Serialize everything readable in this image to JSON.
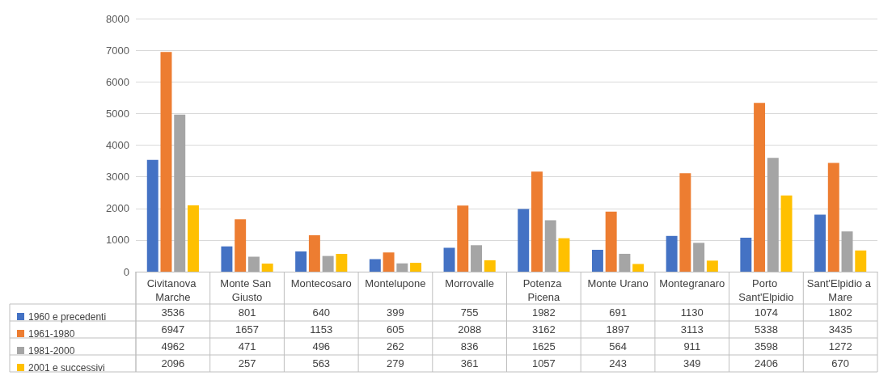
{
  "chart_data": {
    "type": "bar",
    "categories": [
      "Civitanova Marche",
      "Monte San Giusto",
      "Montecosaro",
      "Montelupone",
      "Morrovalle",
      "Potenza Picena",
      "Monte Urano",
      "Montegranaro",
      "Porto Sant'Elpidio",
      "Sant'Elpidio a Mare"
    ],
    "series": [
      {
        "name": "1960 e precedenti",
        "color": "#4472c4",
        "values": [
          3536,
          801,
          640,
          399,
          755,
          1982,
          691,
          1130,
          1074,
          1802
        ]
      },
      {
        "name": "1961-1980",
        "color": "#ed7d31",
        "values": [
          6947,
          1657,
          1153,
          605,
          2088,
          3162,
          1897,
          3113,
          5338,
          3435
        ]
      },
      {
        "name": "1981-2000",
        "color": "#a5a5a5",
        "values": [
          4962,
          471,
          496,
          262,
          836,
          1625,
          564,
          911,
          3598,
          1272
        ]
      },
      {
        "name": "2001 e successivi",
        "color": "#ffc000",
        "values": [
          2096,
          257,
          563,
          279,
          361,
          1057,
          243,
          349,
          2406,
          670
        ]
      }
    ],
    "ylim": [
      0,
      8000
    ],
    "yticks": [
      0,
      1000,
      2000,
      3000,
      4000,
      5000,
      6000,
      7000,
      8000
    ],
    "grid": "y",
    "legend": "bottom left",
    "data_labels": true
  }
}
